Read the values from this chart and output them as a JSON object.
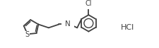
{
  "background_color": "#ffffff",
  "line_color": "#404040",
  "text_color": "#404040",
  "line_width": 1.3,
  "fig_width": 2.26,
  "fig_height": 0.68,
  "dpi": 100,
  "hcl_text": "HCl",
  "hcl_fontsize": 8.0,
  "s_fontsize": 7.0,
  "n_fontsize": 7.5,
  "cl_fontsize": 7.0
}
